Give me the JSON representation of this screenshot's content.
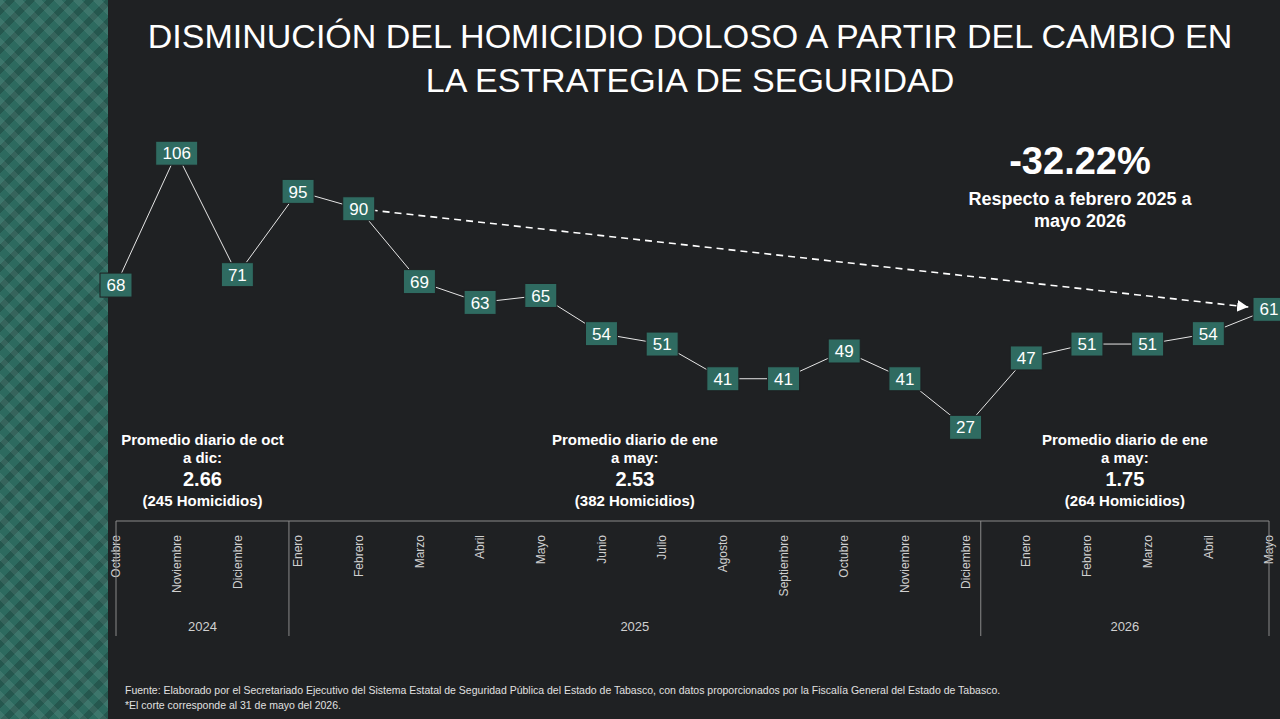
{
  "chart_data": {
    "type": "line",
    "title": "DISMINUCIÓN DEL HOMICIDIO DOLOSO A PARTIR DEL CAMBIO EN LA ESTRATEGIA DE SEGURIDAD",
    "categories": [
      "Octubre",
      "Noviembre",
      "Diciembre",
      "Enero",
      "Febrero",
      "Marzo",
      "Abril",
      "Mayo",
      "Junio",
      "Julio",
      "Agosto",
      "Septiembre",
      "Octubre",
      "Noviembre",
      "Diciembre",
      "Enero",
      "Febrero",
      "Marzo",
      "Abril",
      "Mayo"
    ],
    "years": [
      "2024",
      "2024",
      "2024",
      "2025",
      "2025",
      "2025",
      "2025",
      "2025",
      "2025",
      "2025",
      "2025",
      "2025",
      "2025",
      "2025",
      "2025",
      "2026",
      "2026",
      "2026",
      "2026",
      "2026"
    ],
    "values": [
      68,
      106,
      71,
      95,
      90,
      69,
      63,
      65,
      54,
      51,
      41,
      41,
      49,
      41,
      27,
      47,
      51,
      51,
      54,
      61
    ],
    "color": "#2f6b61",
    "marker": "square",
    "data_labels": true,
    "tick_labels": "x",
    "ylim": [
      0,
      115
    ],
    "highlight": {
      "value": -32.22,
      "label": "-32.22%",
      "text": "Respecto a febrero 2025 a mayo 2026",
      "from": [
        "Febrero",
        "2025"
      ],
      "to": [
        "Mayo",
        "2026"
      ],
      "line_style": "dashed"
    },
    "annotations": [
      {
        "text": "Promedio diario de oct a dic:",
        "value": 2.66,
        "note": "(245 Homicidios)"
      },
      {
        "text": "Promedio diario de ene a may:",
        "value": 2.53,
        "note": "(382 Homicidios)"
      },
      {
        "text": "Promedio diario de ene a may:",
        "value": 1.75,
        "note": "(264 Homicidios)"
      }
    ],
    "source": "Fuente: Elaborado por el Secretariado Ejecutivo del Sistema Estatal de Seguridad Pública del Estado de Tabasco, con datos proporcionados por la Fiscalía General del Estado de Tabasco.",
    "note": "*El corte corresponde al 31 de mayo del 2026."
  }
}
